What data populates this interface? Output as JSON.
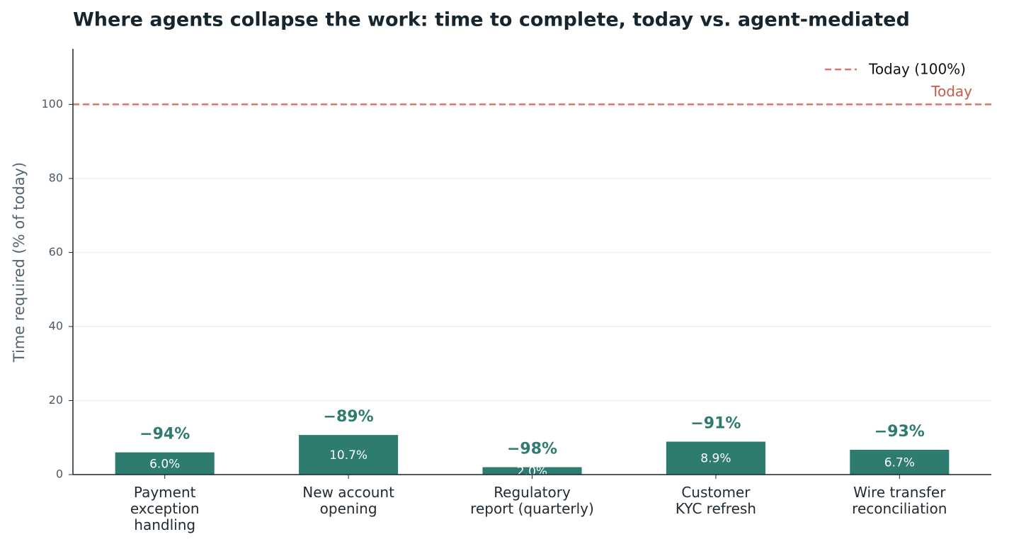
{
  "chart_data": {
    "type": "bar",
    "title": "Where agents collapse the work: time to complete, today vs. agent-mediated",
    "y_label": "Time required (% of today)",
    "categories": [
      "Payment\nexception\nhandling",
      "New account\nopening",
      "Regulatory\nreport (quarterly)",
      "Customer\nKYC refresh",
      "Wire transfer\nreconciliation"
    ],
    "values": [
      6.0,
      10.7,
      2.0,
      8.9,
      6.7
    ],
    "value_labels": [
      "6.0%",
      "10.7%",
      "2.0%",
      "8.9%",
      "6.7%"
    ],
    "change_labels": [
      "−94%",
      "−89%",
      "−98%",
      "−91%",
      "−93%"
    ],
    "color": "#2e7b6f",
    "ylim": [
      0,
      115
    ],
    "yticks": [
      0,
      20,
      40,
      60,
      80,
      100
    ],
    "grid": true,
    "reference": {
      "value": 100,
      "label": "Today",
      "legend": "Today (100%)",
      "color": "#d9776a"
    },
    "legend_position": "upper right"
  }
}
